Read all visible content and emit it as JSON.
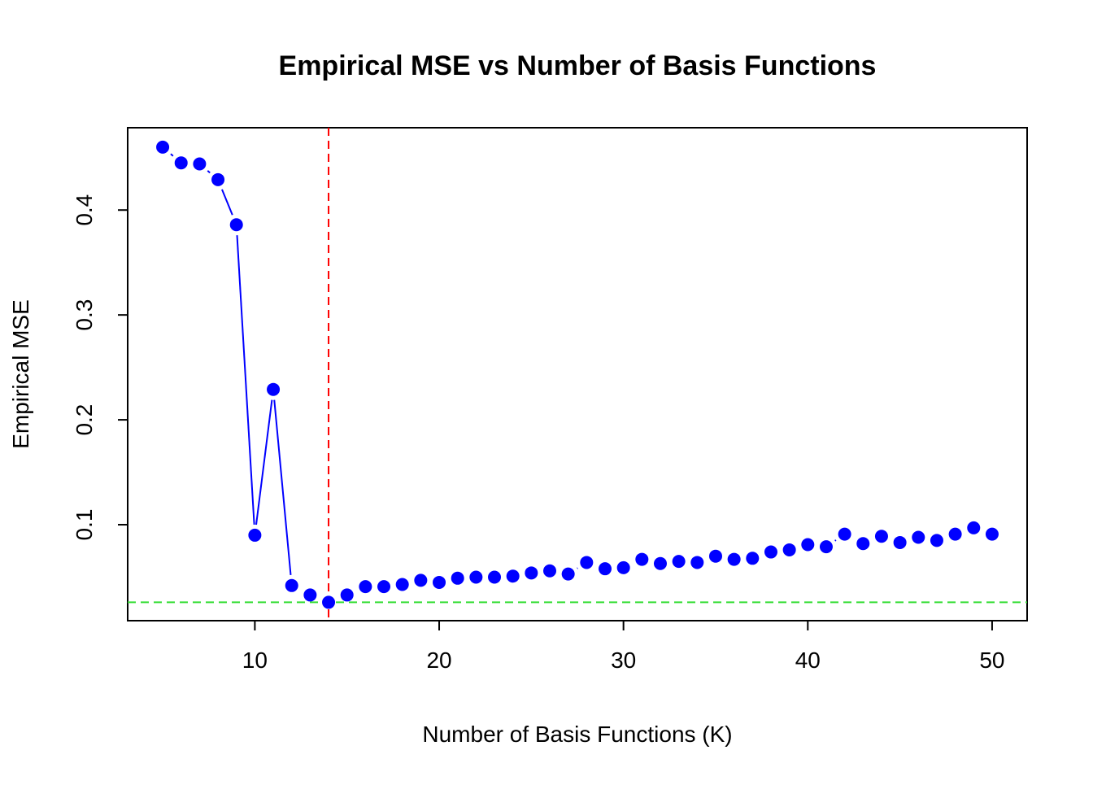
{
  "chart_data": {
    "type": "line",
    "title": "Empirical MSE vs Number of Basis Functions",
    "xlabel": "Number of Basis Functions (K)",
    "ylabel": "Empirical MSE",
    "xlim": [
      3.1,
      51.9
    ],
    "ylim": [
      0.0085,
      0.4785
    ],
    "x_ticks": [
      10,
      20,
      30,
      40,
      50
    ],
    "x_tick_labels": [
      "10",
      "20",
      "30",
      "40",
      "50"
    ],
    "y_ticks": [
      0.1,
      0.2,
      0.3,
      0.4
    ],
    "y_tick_labels": [
      "0.1",
      "0.2",
      "0.3",
      "0.4"
    ],
    "grid": false,
    "legend": "none",
    "series": [
      {
        "x": [
          5,
          6,
          7,
          8,
          9,
          10,
          11,
          12,
          13,
          14,
          15,
          16,
          17,
          18,
          19,
          20,
          21,
          22,
          23,
          24,
          25,
          26,
          27,
          28,
          29,
          30,
          31,
          32,
          33,
          34,
          35,
          36,
          37,
          38,
          39,
          40,
          41,
          42,
          43,
          44,
          45,
          46,
          47,
          48,
          49,
          50
        ],
        "values": [
          0.46,
          0.445,
          0.444,
          0.429,
          0.386,
          0.09,
          0.229,
          0.042,
          0.033,
          0.026,
          0.033,
          0.041,
          0.041,
          0.043,
          0.047,
          0.045,
          0.049,
          0.05,
          0.05,
          0.051,
          0.054,
          0.056,
          0.053,
          0.064,
          0.058,
          0.059,
          0.067,
          0.063,
          0.065,
          0.064,
          0.07,
          0.067,
          0.068,
          0.074,
          0.076,
          0.081,
          0.079,
          0.091,
          0.082,
          0.089,
          0.083,
          0.088,
          0.085,
          0.091,
          0.097,
          0.091
        ],
        "color": "#0000ff",
        "marker": "filled-circle",
        "line_type": "both"
      }
    ],
    "reference_lines": [
      {
        "orientation": "vertical",
        "value": 14,
        "color": "#ff0000",
        "style": "dashed"
      },
      {
        "orientation": "horizontal",
        "value": 0.026,
        "color": "#33dd33",
        "style": "dashed"
      }
    ]
  }
}
